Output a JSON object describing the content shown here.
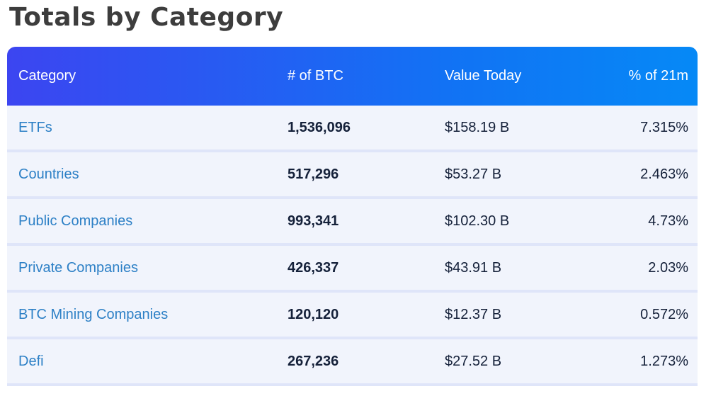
{
  "page": {
    "title": "Totals by Category"
  },
  "table": {
    "columns": [
      {
        "key": "category",
        "label": "Category"
      },
      {
        "key": "btc",
        "label": "# of BTC"
      },
      {
        "key": "value",
        "label": "Value Today"
      },
      {
        "key": "pct",
        "label": "% of 21m"
      }
    ],
    "rows": [
      {
        "category": "ETFs",
        "btc": "1,536,096",
        "value": "$158.19 B",
        "pct": "7.315%"
      },
      {
        "category": "Countries",
        "btc": "517,296",
        "value": "$53.27 B",
        "pct": "2.463%"
      },
      {
        "category": "Public Companies",
        "btc": "993,341",
        "value": "$102.30 B",
        "pct": "4.73%"
      },
      {
        "category": "Private Companies",
        "btc": "426,337",
        "value": "$43.91 B",
        "pct": "2.03%"
      },
      {
        "category": "BTC Mining Companies",
        "btc": "120,120",
        "value": "$12.37 B",
        "pct": "0.572%"
      },
      {
        "category": "Defi",
        "btc": "267,236",
        "value": "$27.52 B",
        "pct": "1.273%"
      }
    ]
  },
  "chart_data": {
    "type": "table",
    "title": "Totals by Category",
    "columns": [
      "Category",
      "# of BTC",
      "Value Today",
      "% of 21m"
    ],
    "categories": [
      "ETFs",
      "Countries",
      "Public Companies",
      "Private Companies",
      "BTC Mining Companies",
      "Defi"
    ],
    "series": [
      {
        "name": "# of BTC",
        "values": [
          1536096,
          517296,
          993341,
          426337,
          120120,
          267236
        ]
      },
      {
        "name": "Value Today ($B)",
        "values": [
          158.19,
          53.27,
          102.3,
          43.91,
          12.37,
          27.52
        ]
      },
      {
        "name": "% of 21m",
        "values": [
          7.315,
          2.463,
          4.73,
          2.03,
          0.572,
          1.273
        ]
      }
    ]
  },
  "colors": {
    "header_gradient_start": "#3c45f1",
    "header_gradient_end": "#0689f6",
    "header_text": "#ffffff",
    "row_background": "#f1f4fc",
    "row_separator": "#dfe5f9",
    "link_blue": "#2d80c6",
    "value_navy": "#15213a",
    "title_gray": "#3d3d3d",
    "page_background": "#ffffff"
  }
}
